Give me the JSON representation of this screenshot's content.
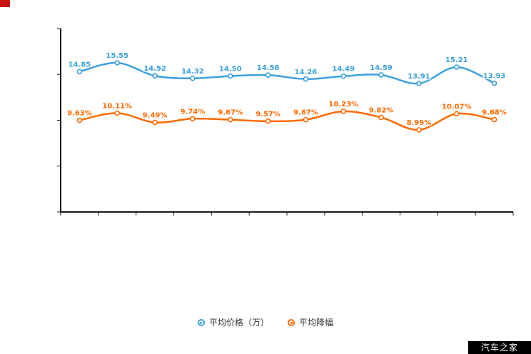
{
  "watermark": {
    "text": "汽车之家",
    "bg": "#000000",
    "color": "#ffffff"
  },
  "corner_marker": {
    "color": "#cc1111"
  },
  "axis": {
    "color": "#1a1a1a"
  },
  "chart_data": {
    "type": "line",
    "title": "",
    "xlabel": "",
    "ylabel": "",
    "grid": false,
    "legend_position": "bottom",
    "categories": [
      "",
      "",
      "",
      "",
      "",
      "",
      "",
      "",
      "",
      "",
      "",
      ""
    ],
    "series": [
      {
        "name": "平均价格（万）",
        "color": "#3ba0dc",
        "values": [
          14.85,
          15.55,
          14.52,
          14.32,
          14.5,
          14.58,
          14.26,
          14.49,
          14.59,
          13.91,
          15.21,
          13.93
        ],
        "labels": [
          "14.85",
          "15.55",
          "14.52",
          "14.32",
          "14.50",
          "14.58",
          "14.26",
          "14.49",
          "14.59",
          "13.91",
          "15.21",
          "13.93"
        ]
      },
      {
        "name": "平均降幅",
        "color": "#ff6a00",
        "values": [
          9.63,
          10.11,
          9.49,
          9.74,
          9.67,
          9.57,
          9.67,
          10.23,
          9.82,
          8.99,
          10.07,
          9.68
        ],
        "labels": [
          "9.63%",
          "10.11%",
          "9.49%",
          "9.74%",
          "9.67%",
          "9.57%",
          "9.67%",
          "10.23%",
          "9.82%",
          "8.99%",
          "10.07%",
          "9.68%"
        ]
      }
    ]
  }
}
